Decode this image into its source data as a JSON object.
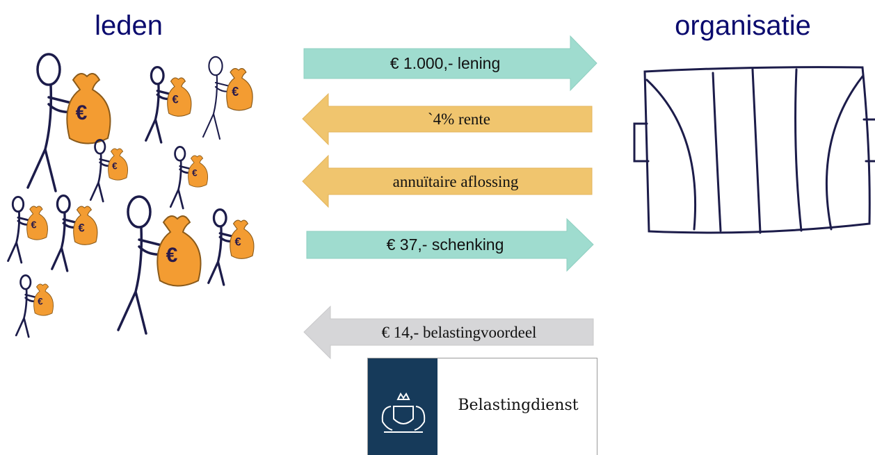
{
  "left_title": "leden",
  "right_title": "organisatie",
  "bag_symbol": "€",
  "arrows": [
    {
      "label": "€ 1.000,- lening"
    },
    {
      "label": "`4% rente"
    },
    {
      "label": "annuïtaire aflossing"
    },
    {
      "label": "€ 37,- schenking"
    },
    {
      "label": "€ 14,- belastingvoordeel"
    }
  ],
  "logo": {
    "text": "Belastingdienst"
  }
}
